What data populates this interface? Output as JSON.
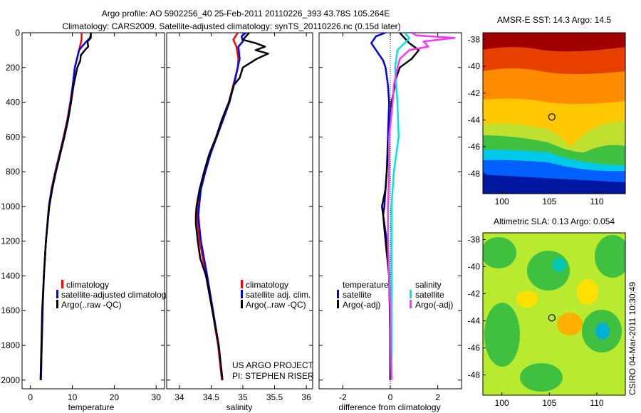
{
  "title_line1": "Argo profile: AO 5902256_40 25-Feb-2011 20110226_393 43.78S 105.264E",
  "title_line2": "Climatology: CARS2009. Satellite-adjusted climatology: synTS_20110226.nc (0.15d later)",
  "footer_left": "US ARGO PROJECT",
  "footer_left2": "PI: STEPHEN RISER",
  "footer_right": "CSIRO 04-Mar-2011 10:30:49",
  "colors": {
    "climatology": "#ff0000",
    "satellite": "#0000ff",
    "argo": "#000000",
    "sal_satellite": "#00e5e5",
    "sal_argo": "#ff33ff"
  },
  "chart_data": [
    {
      "type": "line",
      "xlabel": "temperature",
      "xlim": [
        -2,
        32
      ],
      "xticks": [
        0,
        10,
        20,
        30
      ],
      "ylim": [
        2050,
        0
      ],
      "yticks": [
        0,
        200,
        400,
        600,
        800,
        1000,
        1200,
        1400,
        1600,
        1800,
        2000
      ],
      "legend": [
        "climatology",
        "satellite-adjusted climatolog",
        "Argo(..raw -QC)"
      ],
      "series": [
        {
          "name": "climatology",
          "color_key": "climatology",
          "depth": [
            0,
            40,
            80,
            120,
            200,
            300,
            400,
            500,
            600,
            700,
            800,
            900,
            1000,
            1200,
            1400,
            1600,
            1800,
            2000
          ],
          "values": [
            12.2,
            12.2,
            11.8,
            11.4,
            10.6,
            10.1,
            9.5,
            8.8,
            7.9,
            6.9,
            5.9,
            5.0,
            4.4,
            3.7,
            3.2,
            2.9,
            2.7,
            2.5
          ]
        },
        {
          "name": "satellite",
          "color_key": "satellite",
          "depth": [
            0,
            30,
            60,
            100,
            160,
            200,
            300,
            400,
            500,
            600,
            700,
            800,
            900,
            1000,
            1200,
            1400,
            1600,
            1800,
            2000
          ],
          "values": [
            14.5,
            14.2,
            13.0,
            11.6,
            11.0,
            10.6,
            10.1,
            9.6,
            8.9,
            8.0,
            7.0,
            6.0,
            5.1,
            4.4,
            3.7,
            3.2,
            2.9,
            2.7,
            2.5
          ]
        },
        {
          "name": "argo",
          "color_key": "argo",
          "depth": [
            0,
            30,
            50,
            80,
            100,
            130,
            160,
            200,
            300,
            400,
            500,
            600,
            700,
            800,
            900,
            1000,
            1200,
            1400,
            1600,
            1800,
            2000
          ],
          "values": [
            14.4,
            14.4,
            13.6,
            13.8,
            13.0,
            12.0,
            11.9,
            11.2,
            10.3,
            9.7,
            9.0,
            8.1,
            7.1,
            6.1,
            5.2,
            4.5,
            3.7,
            3.2,
            2.8,
            2.6,
            2.4
          ]
        }
      ]
    },
    {
      "type": "line",
      "xlabel": "salinity",
      "xlim": [
        33.8,
        36.1
      ],
      "xticks": [
        34,
        34.5,
        35,
        35.5,
        36
      ],
      "ylim": [
        2050,
        0
      ],
      "legend": [
        "climatology",
        "satellite adj. clim.",
        "Argo(..raw -QC)"
      ],
      "series": [
        {
          "name": "climatology",
          "color_key": "climatology",
          "depth": [
            0,
            40,
            80,
            150,
            200,
            300,
            400,
            500,
            600,
            700,
            800,
            900,
            1000,
            1050,
            1100,
            1200,
            1400,
            1600,
            1800,
            2000
          ],
          "values": [
            34.92,
            34.85,
            34.9,
            34.93,
            34.92,
            34.85,
            34.78,
            34.68,
            34.58,
            34.48,
            34.4,
            34.33,
            34.29,
            34.28,
            34.29,
            34.32,
            34.42,
            34.52,
            34.61,
            34.67
          ]
        },
        {
          "name": "satellite",
          "color_key": "satellite",
          "depth": [
            0,
            20,
            50,
            80,
            150,
            200,
            300,
            400,
            500,
            600,
            700,
            800,
            900,
            1000,
            1050,
            1100,
            1200,
            1400,
            1600,
            1800,
            2000
          ],
          "values": [
            35.05,
            34.98,
            35.0,
            34.93,
            34.95,
            34.92,
            34.86,
            34.79,
            34.69,
            34.59,
            34.49,
            34.41,
            34.34,
            34.31,
            34.3,
            34.31,
            34.34,
            34.44,
            34.53,
            34.62,
            34.68
          ]
        },
        {
          "name": "argo",
          "color_key": "argo",
          "depth": [
            0,
            20,
            40,
            60,
            80,
            100,
            120,
            150,
            200,
            260,
            300,
            400,
            500,
            600,
            700,
            800,
            900,
            1000,
            1050,
            1100,
            1200,
            1300,
            1400,
            1600,
            1800,
            2000
          ],
          "values": [
            35.1,
            35.05,
            35.0,
            35.2,
            35.35,
            35.2,
            35.4,
            35.22,
            35.0,
            34.95,
            34.86,
            34.78,
            34.67,
            34.58,
            34.47,
            34.39,
            34.32,
            34.27,
            34.26,
            34.26,
            34.29,
            34.33,
            34.42,
            34.52,
            34.62,
            34.68
          ]
        }
      ]
    },
    {
      "type": "line",
      "xlabel": "difference from climatology",
      "xlim": [
        -3,
        3
      ],
      "xticks": [
        -2,
        0,
        2
      ],
      "ylim": [
        2050,
        0
      ],
      "legend_title_t": "temperature",
      "legend_title_s": "salinity",
      "legend": [
        "satellite",
        "Argo(-adj)",
        "satellite",
        "Argo(-adj)"
      ],
      "series": [
        {
          "name": "temperature satellite",
          "color_key": "satellite",
          "depth": [
            0,
            20,
            60,
            100,
            160,
            200,
            300,
            400,
            600,
            800,
            900,
            1000,
            1050,
            1200,
            1400,
            1600,
            1800,
            2000
          ],
          "values": [
            -0.2,
            -0.6,
            -0.8,
            -0.6,
            -0.3,
            -0.2,
            -0.1,
            -0.05,
            -0.1,
            -0.15,
            -0.2,
            -0.25,
            -0.3,
            -0.15,
            -0.05,
            0,
            0,
            0
          ]
        },
        {
          "name": "temperature argo",
          "color_key": "argo",
          "depth": [
            0,
            30,
            60,
            100,
            150,
            200,
            260,
            300,
            400,
            600,
            800,
            900,
            1000,
            1050,
            1200,
            1400,
            1600,
            1800,
            2000
          ],
          "values": [
            0.4,
            0.6,
            0.8,
            1.2,
            0.9,
            0.4,
            0.25,
            0.2,
            0.05,
            -0.05,
            -0.15,
            -0.2,
            -0.35,
            -0.3,
            -0.2,
            -0.05,
            -0.02,
            0,
            0
          ]
        },
        {
          "name": "salinity satellite",
          "color_key": "sal_satellite",
          "depth": [
            0,
            30,
            60,
            100,
            200,
            300,
            400,
            600,
            800,
            1000,
            1200,
            1400,
            1600,
            1800,
            2000
          ],
          "values": [
            0.6,
            0.8,
            0.6,
            0.3,
            0.2,
            0.25,
            0.3,
            0.35,
            0.15,
            0.05,
            0.05,
            0.05,
            0.05,
            0.05,
            0.05
          ]
        },
        {
          "name": "salinity argo",
          "color_key": "sal_argo",
          "depth": [
            0,
            15,
            30,
            50,
            80,
            100,
            150,
            200,
            300,
            400,
            600,
            800,
            1000,
            1200,
            1400,
            1600,
            1800,
            2000
          ],
          "values": [
            0.9,
            1.1,
            2.7,
            1.4,
            1.6,
            0.8,
            0.4,
            0.3,
            0.15,
            0.1,
            -0.05,
            -0.05,
            -0.1,
            -0.1,
            -0.05,
            0,
            0.02,
            0.05
          ]
        }
      ]
    },
    {
      "type": "heatmap",
      "title": "AMSR-E SST: 14.3 Argo: 14.5",
      "xlim": [
        98,
        113
      ],
      "xticks": [
        100,
        105,
        110
      ],
      "ylim": [
        -49.5,
        -37.5
      ],
      "yticks": [
        -38,
        -40,
        -42,
        -44,
        -46,
        -48
      ],
      "marker": [
        105.264,
        -43.78
      ]
    },
    {
      "type": "heatmap",
      "title": "Altimetric SLA: 0.13 Argo: 0.054",
      "xlim": [
        98,
        113
      ],
      "xticks": [
        100,
        105,
        110
      ],
      "ylim": [
        -49.5,
        -37.5
      ],
      "yticks": [
        -38,
        -40,
        -42,
        -44,
        -46,
        -48
      ],
      "marker": [
        105.264,
        -43.78
      ]
    }
  ]
}
